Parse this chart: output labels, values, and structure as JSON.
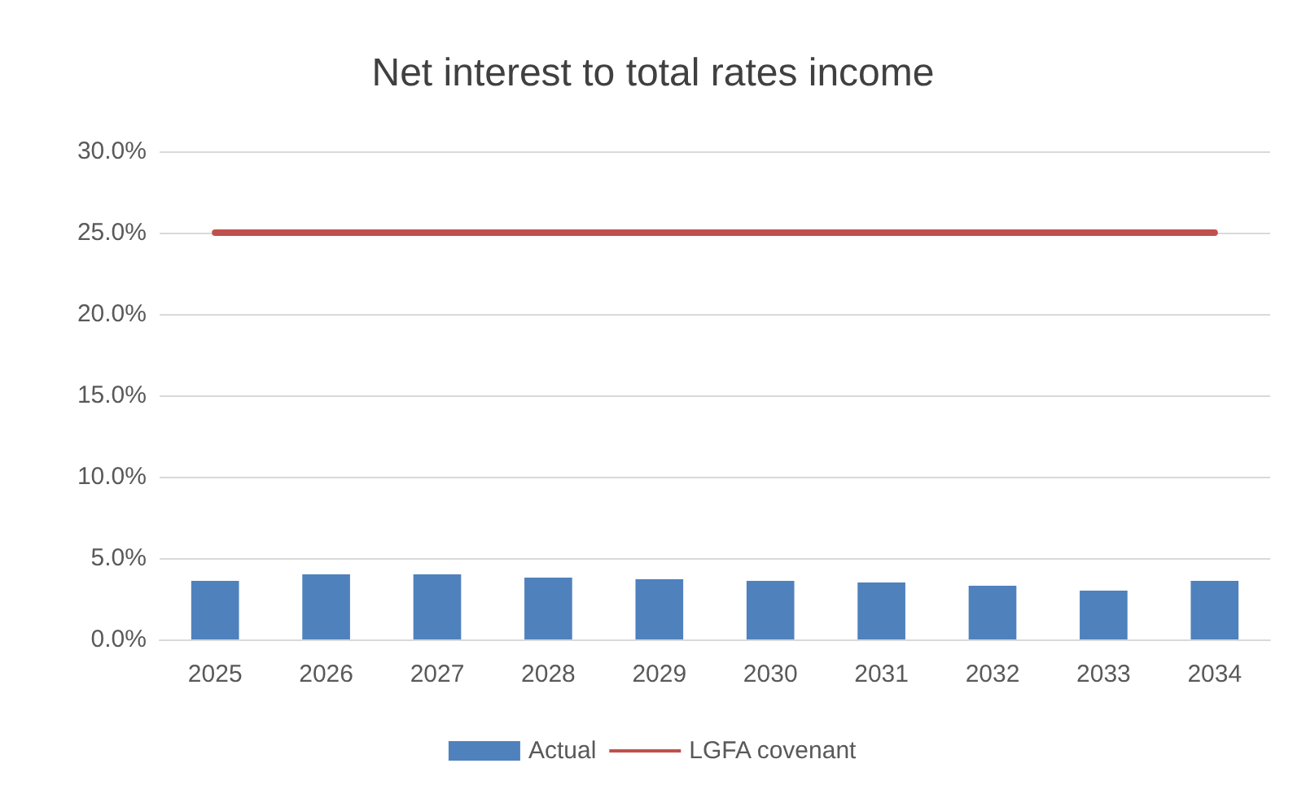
{
  "chart_data": {
    "type": "bar",
    "title": "Net interest to total rates income",
    "categories": [
      "2025",
      "2026",
      "2027",
      "2028",
      "2029",
      "2030",
      "2031",
      "2032",
      "2033",
      "2034"
    ],
    "series": [
      {
        "name": "Actual",
        "color": "#4f81bd",
        "values": [
          3.6,
          4.0,
          4.0,
          3.8,
          3.7,
          3.6,
          3.5,
          3.3,
          3.0,
          3.6
        ]
      },
      {
        "name": "LGFA covenant",
        "type": "line",
        "color": "#c0504d",
        "values": [
          25,
          25,
          25,
          25,
          25,
          25,
          25,
          25,
          25,
          25
        ]
      }
    ],
    "ylim": [
      0,
      30
    ],
    "yticks": [
      {
        "value": 0,
        "label": "0.0%"
      },
      {
        "value": 5,
        "label": "5.0%"
      },
      {
        "value": 10,
        "label": "10.0%"
      },
      {
        "value": 15,
        "label": "15.0%"
      },
      {
        "value": 20,
        "label": "20.0%"
      },
      {
        "value": 25,
        "label": "25.0%"
      },
      {
        "value": 30,
        "label": "30.0%"
      }
    ],
    "grid": "y",
    "legend": "bottom",
    "marker": "none",
    "line_style": "solid"
  }
}
